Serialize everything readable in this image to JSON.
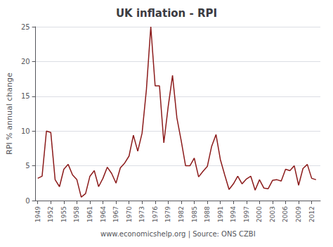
{
  "chart_data": {
    "type": "line",
    "title": "UK inflation - RPI",
    "xlabel": "www.economicshelp.org | Source: ONS CZBI",
    "ylabel": "RPI % annual change",
    "x": [
      1949,
      1950,
      1951,
      1952,
      1953,
      1954,
      1955,
      1956,
      1957,
      1958,
      1959,
      1960,
      1961,
      1962,
      1963,
      1964,
      1965,
      1966,
      1967,
      1968,
      1969,
      1970,
      1971,
      1972,
      1973,
      1974,
      1975,
      1976,
      1977,
      1978,
      1979,
      1980,
      1981,
      1982,
      1983,
      1984,
      1985,
      1986,
      1987,
      1988,
      1989,
      1990,
      1991,
      1992,
      1993,
      1994,
      1995,
      1996,
      1997,
      1998,
      1999,
      2000,
      2001,
      2002,
      2003,
      2004,
      2005,
      2006,
      2007,
      2008,
      2009,
      2010,
      2011,
      2012,
      2013
    ],
    "values": [
      3.2,
      3.5,
      10.0,
      9.8,
      3.0,
      2.0,
      4.5,
      5.2,
      3.7,
      3.0,
      0.5,
      1.0,
      3.5,
      4.3,
      2.0,
      3.2,
      4.8,
      3.9,
      2.5,
      4.7,
      5.4,
      6.4,
      9.4,
      7.1,
      9.7,
      16.0,
      25.0,
      16.5,
      16.5,
      8.3,
      13.5,
      18.0,
      11.9,
      8.6,
      5.0,
      5.0,
      6.1,
      3.4,
      4.2,
      4.9,
      7.8,
      9.5,
      5.9,
      3.7,
      1.6,
      2.4,
      3.5,
      2.4,
      3.1,
      3.5,
      1.5,
      3.0,
      1.8,
      1.7,
      2.9,
      3.0,
      2.8,
      4.5,
      4.3,
      5.0,
      2.2,
      4.6,
      5.2,
      3.2,
      3.0
    ],
    "color": "#8B1A1A",
    "xlim": [
      1948.5,
      2014
    ],
    "xticks": [
      1949,
      1952,
      1955,
      1958,
      1961,
      1964,
      1967,
      1970,
      1973,
      1976,
      1979,
      1982,
      1985,
      1988,
      1991,
      1994,
      1997,
      2000,
      2003,
      2006,
      2009,
      2012
    ],
    "ylim": [
      0,
      25
    ],
    "yticks": [
      0,
      5,
      10,
      15,
      20,
      25
    ],
    "grid": true
  }
}
